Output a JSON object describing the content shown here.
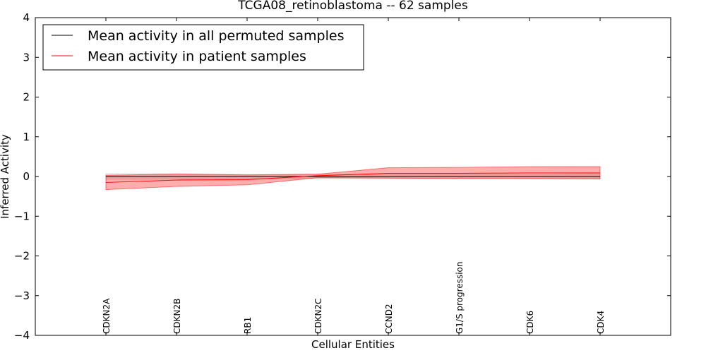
{
  "chart_data": {
    "type": "line",
    "title": "TCGA08_retinoblastoma -- 62 samples",
    "xlabel": "Cellular Entities",
    "ylabel": "Inferred Activity",
    "ylim": [
      -4,
      4
    ],
    "yticks": [
      4,
      3,
      2,
      1,
      0,
      -1,
      -2,
      -3,
      -4
    ],
    "ytick_labels": [
      "4",
      "3",
      "2",
      "1",
      "0",
      "−1",
      "−2",
      "−3",
      "−4"
    ],
    "categories": [
      "CDKN2A",
      "CDKN2B",
      "RB1",
      "CDKN2C",
      "CCND2",
      "G1/S progression",
      "CDK6",
      "CDK4"
    ],
    "x": [
      1,
      2,
      3,
      4,
      5,
      6,
      7,
      8
    ],
    "xlim": [
      0,
      9
    ],
    "legend": {
      "placement": "top-left"
    },
    "series": [
      {
        "name": "Mean activity in all permuted samples",
        "color": "#000000",
        "band_color": "#bbbbbb",
        "values": [
          0.0,
          0.0,
          0.0,
          0.0,
          0.0,
          0.0,
          0.0,
          0.0
        ],
        "band_upper": [
          0.07,
          0.07,
          0.05,
          0.05,
          0.05,
          0.05,
          0.06,
          0.06
        ],
        "band_lower": [
          -0.07,
          -0.07,
          -0.05,
          -0.05,
          -0.05,
          -0.05,
          -0.06,
          -0.06
        ]
      },
      {
        "name": "Mean activity in patient samples",
        "color": "#ff0000",
        "band_color": "#ff0000",
        "values": [
          -0.15,
          -0.09,
          -0.08,
          0.02,
          0.08,
          0.08,
          0.09,
          0.09
        ],
        "band_upper": [
          0.03,
          0.06,
          0.04,
          0.06,
          0.22,
          0.23,
          0.25,
          0.25
        ],
        "band_lower": [
          -0.33,
          -0.25,
          -0.21,
          -0.03,
          -0.04,
          -0.05,
          -0.05,
          -0.06
        ]
      }
    ]
  }
}
